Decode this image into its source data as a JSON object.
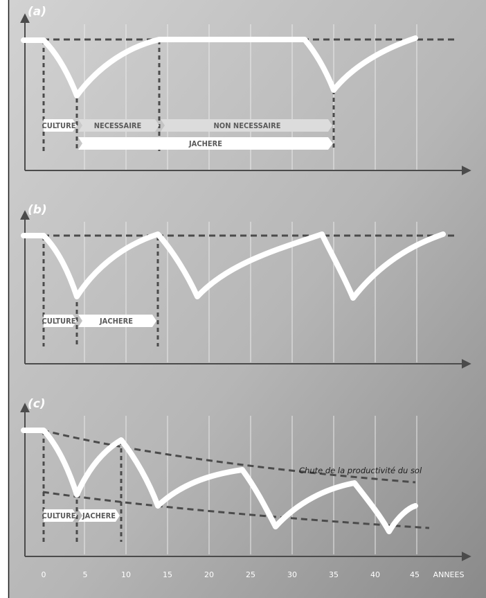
{
  "title": "",
  "colors": {
    "background_light": "#c9c9c9",
    "background_dark": "#8d8d8d",
    "curve": "#ffffff",
    "dashed": "#4b4b4b",
    "grid": "#e8e8e8"
  },
  "axis": {
    "unit": "ANNEES",
    "ticks": [
      "0",
      "5",
      "10",
      "15",
      "20",
      "25",
      "30",
      "35",
      "40",
      "45"
    ]
  },
  "panels": [
    {
      "letter": "(a)",
      "labels": {
        "culture": "CULTURE",
        "necessaire": "NECESSAIRE",
        "non_necessaire": "NON NECESSAIRE",
        "jachere": "JACHERE"
      }
    },
    {
      "letter": "(b)",
      "labels": {
        "culture": "CULTURE",
        "jachere": "JACHERE"
      }
    },
    {
      "letter": "(c)",
      "labels": {
        "culture": "CULTURE",
        "jachere": "JACHERE"
      },
      "annotation": "Chute de la productivité du sol"
    }
  ]
}
